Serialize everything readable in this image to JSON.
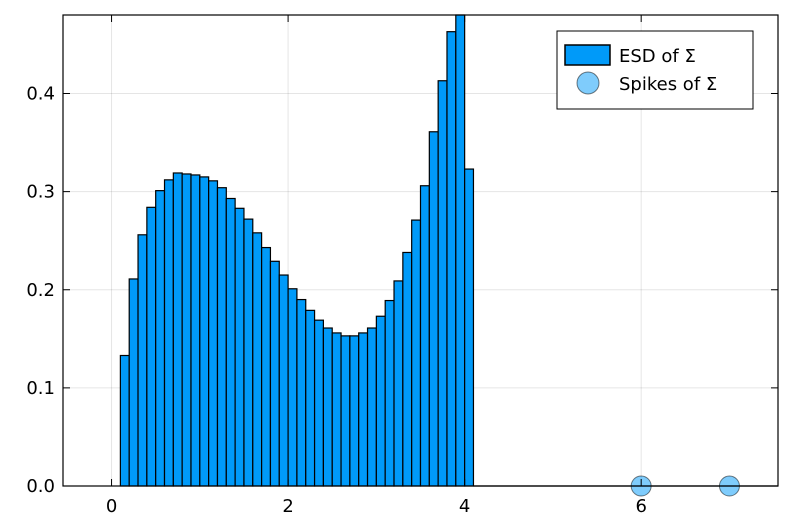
{
  "chart_data": {
    "type": "bar",
    "subtype": "histogram-with-scatter",
    "title": "",
    "xlabel": "",
    "ylabel": "",
    "xlim": [
      -0.55,
      7.55
    ],
    "ylim": [
      0,
      0.48
    ],
    "grid": true,
    "legend_position": "top-right",
    "x_ticks": [
      0,
      2,
      4,
      6
    ],
    "x_tick_labels": [
      "0",
      "2",
      "4",
      "6"
    ],
    "y_ticks": [
      0.0,
      0.1,
      0.2,
      0.3,
      0.4
    ],
    "y_tick_labels": [
      "0.0",
      "0.1",
      "0.2",
      "0.3",
      "0.4"
    ],
    "histogram": {
      "name": "ESD of Σ",
      "color": "#009af9",
      "bin_start": 0.1,
      "bin_width": 0.1,
      "values": [
        0.133,
        0.211,
        0.256,
        0.284,
        0.301,
        0.312,
        0.319,
        0.318,
        0.317,
        0.315,
        0.311,
        0.304,
        0.293,
        0.283,
        0.272,
        0.258,
        0.243,
        0.229,
        0.215,
        0.201,
        0.19,
        0.179,
        0.169,
        0.161,
        0.156,
        0.153,
        0.153,
        0.156,
        0.161,
        0.173,
        0.189,
        0.209,
        0.238,
        0.271,
        0.306,
        0.361,
        0.413,
        0.463,
        0.48,
        0.323
      ]
    },
    "scatter": {
      "name": "Spikes of Σ",
      "color": "#009af9",
      "points": [
        {
          "x": 6,
          "y": 0
        },
        {
          "x": 7,
          "y": 0
        }
      ]
    }
  }
}
